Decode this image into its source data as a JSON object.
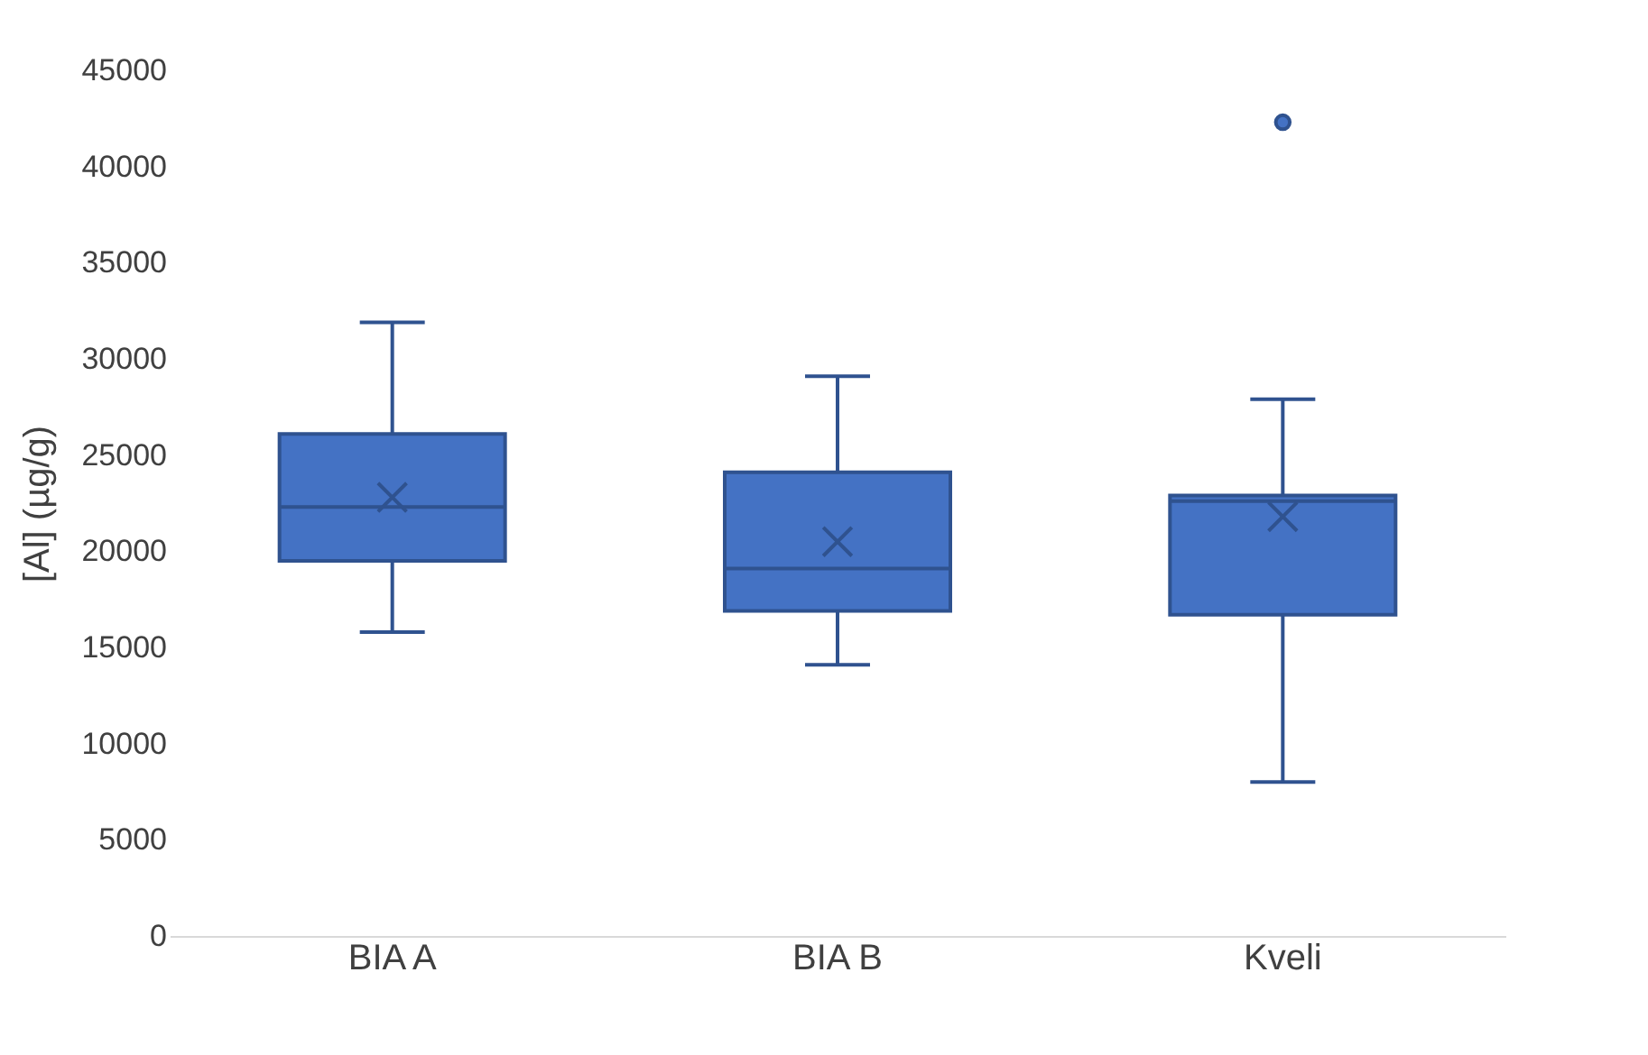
{
  "chart_data": {
    "type": "box",
    "ylabel": "[Al] (µg/g)",
    "categories": [
      "BIA A",
      "BIA B",
      "Kveli"
    ],
    "boxes": [
      {
        "low": 15800,
        "q1": 19500,
        "median": 22300,
        "q3": 26100,
        "high": 31900,
        "mean": 22800
      },
      {
        "low": 14100,
        "q1": 16900,
        "median": 19100,
        "q3": 24100,
        "high": 29100,
        "mean": 20500
      },
      {
        "low": 8000,
        "q1": 16700,
        "median": 22600,
        "q3": 22900,
        "high": 27900,
        "mean": 21800,
        "outliers": [
          42300
        ]
      }
    ],
    "color": "#4472c4",
    "ylim": [
      0,
      45000
    ],
    "yticks": [
      0,
      5000,
      10000,
      15000,
      20000,
      25000,
      30000,
      35000,
      40000,
      45000
    ],
    "grid": false
  }
}
